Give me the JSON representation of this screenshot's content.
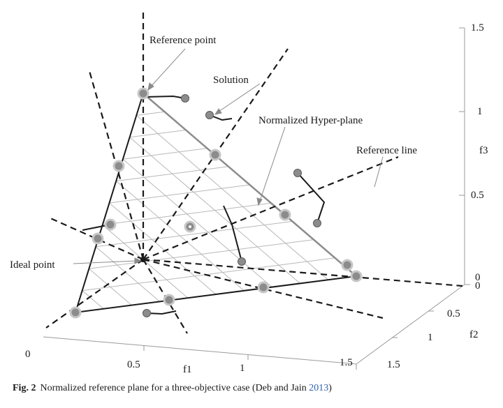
{
  "labels": {
    "reference_point": "Reference point",
    "solution": "Solution",
    "hyperplane": "Normalized Hyper-plane",
    "reference_line": "Reference line",
    "ideal_point": "Ideal point"
  },
  "axes": {
    "f1": {
      "label": "f1",
      "ticks": [
        "0",
        "0.5",
        "1",
        "1.5"
      ]
    },
    "f2": {
      "label": "f2",
      "ticks": [
        "0",
        "0.5",
        "1",
        "1.5"
      ]
    },
    "f3": {
      "label": "f3",
      "ticks": [
        "0",
        "0.5",
        "1",
        "1.5"
      ]
    }
  },
  "caption": {
    "fig_label": "Fig. 2",
    "text": "Normalized reference plane for a three-objective case (Deb and Jain ",
    "year": "2013",
    "close": ")"
  },
  "colors": {
    "ink": "#1a1a1a",
    "grid": "#b8b8b8",
    "marker_fill": "#8c8c8c",
    "marker_ring": "#c8c8c8",
    "link": "#2f5fb3"
  }
}
